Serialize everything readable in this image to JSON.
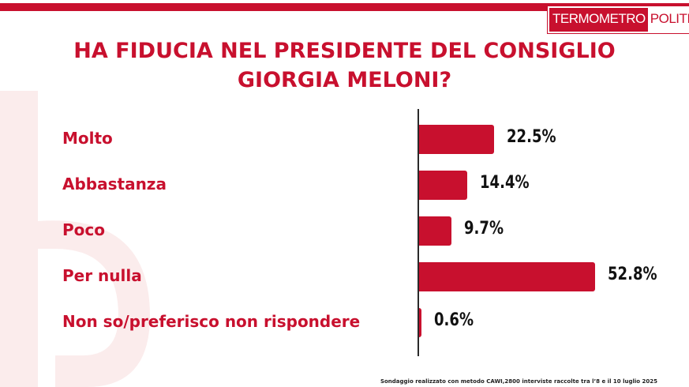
{
  "brand": {
    "logo_part1": "TERMOMETRO",
    "logo_part2": "POLITICO",
    "accent_color": "#c8102e"
  },
  "chart_data": {
    "type": "bar",
    "orientation": "horizontal",
    "title": "HA FIDUCIA NEL PRESIDENTE DEL CONSIGLIO GIORGIA MELONI?",
    "title_lines": [
      "HA FIDUCIA NEL PRESIDENTE DEL CONSIGLIO",
      "GIORGIA MELONI?"
    ],
    "categories": [
      "Molto",
      "Abbastanza",
      "Poco",
      "Per nulla",
      "Non so/preferisco non rispondere"
    ],
    "values": [
      22.5,
      14.4,
      9.7,
      52.8,
      0.6
    ],
    "value_labels": [
      "22.5%",
      "14.4%",
      "9.7%",
      "52.8%",
      "0.6%"
    ],
    "unit": "%",
    "xlim": [
      0,
      60
    ],
    "bar_color": "#c8102e",
    "grid": false,
    "legend": "none"
  },
  "footnote": "Sondaggio realizzato con metodo CAWI,2800 interviste raccolte tra l’8 e il 10 luglio 2025"
}
